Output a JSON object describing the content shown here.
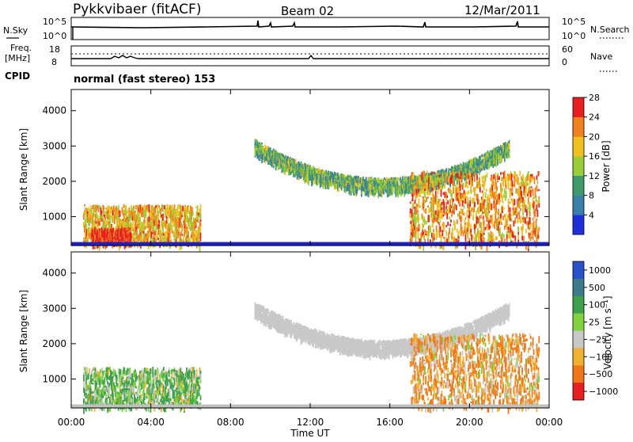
{
  "header": {
    "station": "Pykkvibaer (fitACF)",
    "beam": "Beam 02",
    "date": "12/Mar/2011"
  },
  "params_panel": {
    "nsky_label": "N.Sky",
    "nsearch_label": "N.Search",
    "nsky_ticks": [
      "10^5",
      "10^0"
    ],
    "nsearch_ticks": [
      "10^5",
      "10^0"
    ],
    "freq_label_1": "Freq.",
    "freq_label_2": "[MHz]",
    "freq_ticks": [
      "18",
      "8"
    ],
    "nave_label": "Nave",
    "nave_ticks": [
      "60",
      "0"
    ],
    "cpid_label": "CPID",
    "cpid_text": "normal (fast stereo) 153"
  },
  "x_axis": {
    "label": "Time UT",
    "ticks": [
      "00:00",
      "04:00",
      "08:00",
      "12:00",
      "16:00",
      "20:00",
      "00:00"
    ]
  },
  "colors": {
    "grid_gray": "#c0c0c0",
    "ground_blue": "#2020c8"
  },
  "chart_data": [
    {
      "type": "heatmap",
      "title": "",
      "xlabel": "Time UT",
      "ylabel": "Slant Range [km]",
      "xlim_hours": [
        0,
        24
      ],
      "ylim_km": [
        180,
        4600
      ],
      "y_ticks": [
        "1000",
        "2000",
        "3000",
        "4000"
      ],
      "y_tick_values": [
        1000,
        2000,
        3000,
        4000
      ],
      "colorbar": {
        "label": "Power [dB]",
        "ticks": [
          "4",
          "8",
          "12",
          "16",
          "20",
          "24",
          "28"
        ],
        "tick_values": [
          4,
          8,
          12,
          16,
          20,
          24,
          28
        ],
        "range": [
          0,
          30
        ],
        "colors": [
          "#2030d8",
          "#3a7fa8",
          "#3f9a6b",
          "#9acc3a",
          "#f0c020",
          "#f08020",
          "#e62020"
        ]
      },
      "features": [
        {
          "name": "near-range echoes",
          "t_start": 0.6,
          "t_end": 6.5,
          "r_low": 250,
          "r_high": 1350,
          "value": 20
        },
        {
          "name": "strong near echoes",
          "t_start": 1.0,
          "t_end": 3.0,
          "r_low": 300,
          "r_high": 700,
          "value": 28
        },
        {
          "name": "far-range arc",
          "t_start": 9.2,
          "t_end": 22.0,
          "r_low": 1700,
          "r_high": 3200,
          "value": 12
        },
        {
          "name": "evening echoes",
          "t_start": 17.0,
          "t_end": 23.5,
          "r_low": 250,
          "r_high": 2300,
          "value": 22
        }
      ]
    },
    {
      "type": "heatmap",
      "title": "",
      "xlabel": "Time UT",
      "ylabel": "Slant Range [km]",
      "xlim_hours": [
        0,
        24
      ],
      "ylim_km": [
        180,
        4600
      ],
      "y_ticks": [
        "1000",
        "2000",
        "3000",
        "4000"
      ],
      "y_tick_values": [
        1000,
        2000,
        3000,
        4000
      ],
      "colorbar": {
        "label": "Velocity [m s⁻¹]",
        "ticks": [
          "1000",
          "500",
          "100",
          "25",
          "−25",
          "−100",
          "−500",
          "−1000"
        ],
        "tick_values": [
          1000,
          500,
          100,
          25,
          -25,
          -100,
          -500,
          -1000
        ],
        "colors": [
          "#2850c8",
          "#3d7a8a",
          "#3da04a",
          "#80d040",
          "#c8c8c8",
          "#f0b030",
          "#f07818",
          "#e62020"
        ]
      },
      "features": [
        {
          "name": "near-range flows",
          "t_start": 0.6,
          "t_end": 6.5,
          "r_low": 250,
          "r_high": 1350,
          "value": 100
        },
        {
          "name": "far-range arc (ground scatter)",
          "t_start": 9.2,
          "t_end": 22.0,
          "r_low": 1700,
          "r_high": 3200,
          "value": 0
        },
        {
          "name": "evening flows",
          "t_start": 17.0,
          "t_end": 23.5,
          "r_low": 250,
          "r_high": 2300,
          "value": -100
        }
      ]
    }
  ]
}
